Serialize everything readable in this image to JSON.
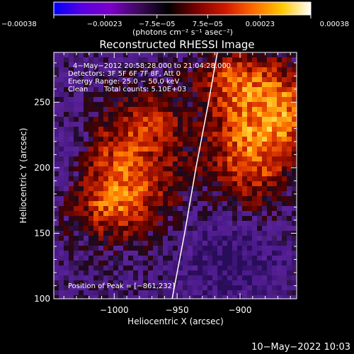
{
  "chart_data": {
    "type": "heatmap",
    "title": "Reconstructed RHESSI Image",
    "xlabel": "Heliocentric X (arcsec)",
    "ylabel": "Heliocentric Y (arcsec)",
    "xlim": [
      -1048,
      -855
    ],
    "ylim": [
      100,
      288
    ],
    "xticks": [
      {
        "value": -1000,
        "label": "−1000"
      },
      {
        "value": -950,
        "label": "−950"
      },
      {
        "value": -900,
        "label": "−900"
      }
    ],
    "yticks": [
      {
        "value": 150,
        "label": "150"
      },
      {
        "value": 200,
        "label": "200"
      },
      {
        "value": 250,
        "label": "250"
      }
    ],
    "colorbar": {
      "range": [
        -0.00038,
        0.00038
      ],
      "ticks": [
        {
          "value": -0.00038,
          "label": "−0.00038"
        },
        {
          "value": -0.00023,
          "label": "−0.00023"
        },
        {
          "value": -7.5e-05,
          "label": "−7.5e−05"
        },
        {
          "value": 7.5e-05,
          "label": "7.5e−05"
        },
        {
          "value": 0.00023,
          "label": "0.00023"
        },
        {
          "value": 0.00038,
          "label": "0.00038"
        }
      ],
      "units_line": "(photons cm⁻² s⁻¹ asec⁻²)",
      "colormap": [
        "#0000ff",
        "#5a00e0",
        "#7a00c8",
        "#3a0a5a",
        "#000000",
        "#7a0000",
        "#d01800",
        "#ff6a00",
        "#ffc800",
        "#ffffff"
      ]
    },
    "annotations": {
      "time_range": "4−May−2012 20:58:28.000 to 21:04:28.000",
      "detectors": "Detectors: 3F 5F 6F 7F 8F, Att 0",
      "energy": "Energy Range: 25.0 − 50.0 keV",
      "clean_label": "Clean",
      "total_counts": "Total counts: 5.10E+03",
      "peak": "Position of Peak = [−861,232]"
    },
    "peak": {
      "x": -861,
      "y": 232
    },
    "limb_line": [
      {
        "x": -954,
        "y": 100
      },
      {
        "x": -944,
        "y": 150
      },
      {
        "x": -935,
        "y": 200
      },
      {
        "x": -925,
        "y": 250
      },
      {
        "x": -918,
        "y": 288
      }
    ]
  },
  "footer": {
    "timestamp": "10−May−2022 10:03"
  }
}
